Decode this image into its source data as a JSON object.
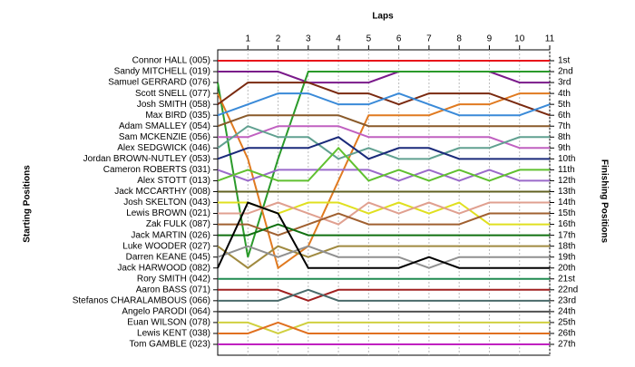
{
  "chart_data": {
    "type": "lap",
    "title": "Laps",
    "y_label": "Starting Positions",
    "y2_label": "Finishing Positions",
    "x": [
      0,
      1,
      2,
      3,
      4,
      5,
      6,
      7,
      8,
      9,
      10,
      11
    ],
    "xlim": [
      0,
      11
    ],
    "xticks": [
      1,
      2,
      3,
      4,
      5,
      6,
      7,
      8,
      9,
      10,
      11
    ],
    "ylim": [
      1,
      27
    ],
    "grid": true,
    "yticks": [
      {
        "value": 1,
        "label": "1st"
      },
      {
        "value": 2,
        "label": "2nd"
      },
      {
        "value": 3,
        "label": "3rd"
      },
      {
        "value": 4,
        "label": "4th"
      },
      {
        "value": 5,
        "label": "5th"
      },
      {
        "value": 6,
        "label": "6th"
      },
      {
        "value": 7,
        "label": "7th"
      },
      {
        "value": 8,
        "label": "8th"
      },
      {
        "value": 9,
        "label": "9th"
      },
      {
        "value": 10,
        "label": "10th"
      },
      {
        "value": 11,
        "label": "11th"
      },
      {
        "value": 12,
        "label": "12th"
      },
      {
        "value": 13,
        "label": "13th"
      },
      {
        "value": 14,
        "label": "14th"
      },
      {
        "value": 15,
        "label": "15th"
      },
      {
        "value": 16,
        "label": "16th"
      },
      {
        "value": 17,
        "label": "17th"
      },
      {
        "value": 18,
        "label": "18th"
      },
      {
        "value": 19,
        "label": "19th"
      },
      {
        "value": 20,
        "label": "20th"
      },
      {
        "value": 21,
        "label": "21st"
      },
      {
        "value": 22,
        "label": "22nd"
      },
      {
        "value": 23,
        "label": "23rd"
      },
      {
        "value": 24,
        "label": "24th"
      },
      {
        "value": 25,
        "label": "25th"
      },
      {
        "value": 26,
        "label": "26th"
      },
      {
        "value": 27,
        "label": "27th"
      }
    ],
    "series": [
      {
        "name": "Connor HALL (005)",
        "color": "#e8101a",
        "values": [
          1,
          1,
          1,
          1,
          1,
          1,
          1,
          1,
          1,
          1,
          1,
          1
        ]
      },
      {
        "name": "Sandy MITCHELL (019)",
        "color": "#7a1a8a",
        "values": [
          2,
          2,
          2,
          3,
          3,
          3,
          2,
          2,
          2,
          2,
          3,
          3
        ]
      },
      {
        "name": "Samuel GERRARD (076)",
        "color": "#2a9a2a",
        "values": [
          3,
          19,
          10,
          2,
          2,
          2,
          2,
          2,
          2,
          2,
          2,
          2
        ]
      },
      {
        "name": "Scott SNELL (077)",
        "color": "#e07a20",
        "values": [
          4,
          10,
          20,
          18,
          12,
          6,
          6,
          6,
          5,
          5,
          4,
          4
        ]
      },
      {
        "name": "Josh SMITH (058)",
        "color": "#7a2a10",
        "values": [
          5,
          3,
          3,
          3,
          4,
          4,
          5,
          4,
          4,
          4,
          5,
          6
        ]
      },
      {
        "name": "Max BIRD (035)",
        "color": "#3a8ad8",
        "values": [
          6,
          5,
          4,
          4,
          5,
          5,
          4,
          5,
          6,
          6,
          6,
          5
        ]
      },
      {
        "name": "Adam SMALLEY (054)",
        "color": "#8a5a2a",
        "values": [
          7,
          6,
          6,
          6,
          6,
          7,
          7,
          7,
          7,
          7,
          7,
          7
        ]
      },
      {
        "name": "Sam MCKENZIE (056)",
        "color": "#c060c0",
        "values": [
          8,
          8,
          7,
          7,
          7,
          8,
          8,
          8,
          8,
          8,
          9,
          9
        ]
      },
      {
        "name": "Alex SEDGWICK (046)",
        "color": "#60a090",
        "values": [
          9,
          7,
          8,
          8,
          10,
          9,
          10,
          10,
          9,
          9,
          8,
          8
        ]
      },
      {
        "name": "Jordan BROWN-NUTLEY (053)",
        "color": "#1a2a7a",
        "values": [
          10,
          9,
          9,
          9,
          8,
          10,
          9,
          9,
          10,
          10,
          10,
          10
        ]
      },
      {
        "name": "Cameron ROBERTS (031)",
        "color": "#9a6aca",
        "values": [
          11,
          12,
          11,
          11,
          11,
          11,
          12,
          11,
          12,
          11,
          12,
          12
        ]
      },
      {
        "name": "Alex STOTT (013)",
        "color": "#60c030",
        "values": [
          12,
          11,
          12,
          12,
          9,
          12,
          11,
          12,
          11,
          12,
          11,
          11
        ]
      },
      {
        "name": "Jack MCCARTHY (008)",
        "color": "#606020",
        "values": [
          13,
          13,
          13,
          13,
          13,
          13,
          13,
          13,
          13,
          13,
          13,
          13
        ]
      },
      {
        "name": "Josh SKELTON (043)",
        "color": "#e0e020",
        "values": [
          14,
          14,
          15,
          14,
          14,
          15,
          14,
          15,
          14,
          16,
          16,
          16
        ]
      },
      {
        "name": "Lewis BROWN (021)",
        "color": "#e0a090",
        "values": [
          15,
          15,
          14,
          15,
          16,
          14,
          15,
          14,
          15,
          14,
          14,
          14
        ]
      },
      {
        "name": "Zak FULK (087)",
        "color": "#a06030",
        "values": [
          16,
          16,
          17,
          16,
          15,
          16,
          16,
          16,
          16,
          15,
          15,
          15
        ]
      },
      {
        "name": "Jack MARTIN (026)",
        "color": "#107010",
        "values": [
          17,
          17,
          16,
          17,
          17,
          17,
          17,
          17,
          17,
          17,
          17,
          17
        ]
      },
      {
        "name": "Luke WOODER (027)",
        "color": "#a08a40",
        "values": [
          18,
          20,
          18,
          19,
          18,
          18,
          18,
          18,
          18,
          18,
          18,
          18
        ]
      },
      {
        "name": "Darren KEANE (045)",
        "color": "#909090",
        "values": [
          19,
          18,
          19,
          18,
          19,
          19,
          19,
          20,
          19,
          19,
          19,
          19
        ]
      },
      {
        "name": "Jack HARWOOD (082)",
        "color": "#000000",
        "values": [
          20,
          14,
          15,
          20,
          20,
          20,
          20,
          19,
          20,
          20,
          20,
          20
        ]
      },
      {
        "name": "Rory SMITH (042)",
        "color": "#208a50",
        "values": [
          21,
          21,
          21,
          21,
          21,
          21,
          21,
          21,
          21,
          21,
          21,
          21
        ]
      },
      {
        "name": "Aaron BASS (071)",
        "color": "#a02020",
        "values": [
          22,
          22,
          22,
          23,
          22,
          22,
          22,
          22,
          22,
          22,
          22,
          22
        ]
      },
      {
        "name": "Stefanos CHARALAMBOUS (066)",
        "color": "#4a6a6a",
        "values": [
          23,
          23,
          23,
          22,
          23,
          23,
          23,
          23,
          23,
          23,
          23,
          23
        ]
      },
      {
        "name": "Angelo PARODI (064)",
        "color": "#505050",
        "values": [
          24,
          24,
          24,
          24,
          24,
          24,
          24,
          24,
          24,
          24,
          24,
          24
        ]
      },
      {
        "name": "Euan WILSON (078)",
        "color": "#d0d040",
        "values": [
          25,
          25,
          26,
          25,
          25,
          25,
          25,
          25,
          25,
          25,
          25,
          25
        ]
      },
      {
        "name": "Lewis KENT (038)",
        "color": "#e07020",
        "values": [
          26,
          26,
          25,
          26,
          26,
          26,
          26,
          26,
          26,
          26,
          26,
          26
        ]
      },
      {
        "name": "Tom GAMBLE (023)",
        "color": "#c020c0",
        "values": [
          27,
          27,
          27,
          27,
          27,
          27,
          27,
          27,
          27,
          27,
          27,
          27
        ]
      }
    ]
  }
}
